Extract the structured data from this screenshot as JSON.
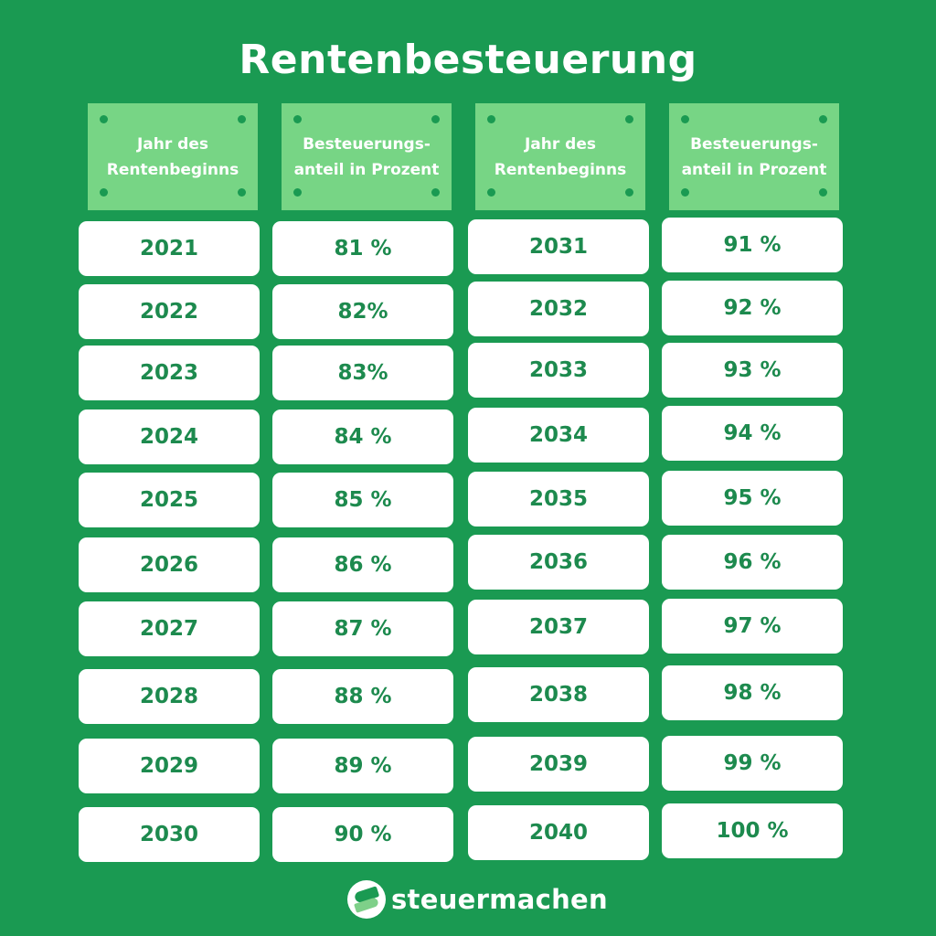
{
  "title": "Rentenbesteuerung",
  "headers": {
    "year_line1": "Jahr des",
    "year_line2": "Rentenbeginns",
    "share_line1": "Besteuerungs-",
    "share_line2": "anteil in Prozent"
  },
  "table_left": [
    {
      "year": "2021",
      "share": "81 %"
    },
    {
      "year": "2022",
      "share": "82%"
    },
    {
      "year": "2023",
      "share": "83%"
    },
    {
      "year": "2024",
      "share": "84 %"
    },
    {
      "year": "2025",
      "share": "85 %"
    },
    {
      "year": "2026",
      "share": "86 %"
    },
    {
      "year": "2027",
      "share": "87 %"
    },
    {
      "year": "2028",
      "share": "88 %"
    },
    {
      "year": "2029",
      "share": "89 %"
    },
    {
      "year": "2030",
      "share": "90 %"
    }
  ],
  "table_right": [
    {
      "year": "2031",
      "share": "91 %"
    },
    {
      "year": "2032",
      "share": "92 %"
    },
    {
      "year": "2033",
      "share": "93 %"
    },
    {
      "year": "2034",
      "share": "94 %"
    },
    {
      "year": "2035",
      "share": "95 %"
    },
    {
      "year": "2036",
      "share": "96 %"
    },
    {
      "year": "2037",
      "share": "97 %"
    },
    {
      "year": "2038",
      "share": "98 %"
    },
    {
      "year": "2039",
      "share": "99 %"
    },
    {
      "year": "2040",
      "share": "100 %"
    }
  ],
  "footer": {
    "brand": "steuermachen",
    "logo_icon": "steuermachen-logo-icon"
  },
  "colors": {
    "background": "#1a9a52",
    "header_fill": "#77d585",
    "cell_fill": "#ffffff",
    "cell_text": "#1d8a4e"
  }
}
